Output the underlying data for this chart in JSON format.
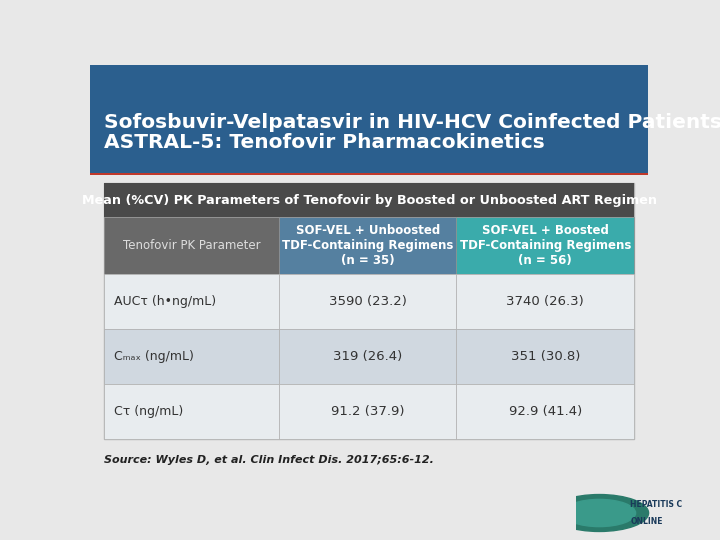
{
  "title_line1": "Sofosbuvir-Velpatasvir in HIV-HCV Coinfected Patients",
  "title_line2": "ASTRAL-5: Tenofovir Pharmacokinetics",
  "header_text": "Mean (%CV) PK Parameters of Tenofovir by Boosted or Unboosted ART Regimen",
  "col1_header": "Tenofovir PK Parameter",
  "col2_header": "SOF-VEL + Unboosted\nTDF-Containing Regimens\n(n = 35)",
  "col3_header": "SOF-VEL + Boosted\nTDF-Containing Regimens\n(n = 56)",
  "col2_bg": "#5580a0",
  "col3_bg": "#3aabab",
  "col1_bg": "#696969",
  "row_bg_odd": "#e8ecef",
  "row_bg_even": "#d0d8e0",
  "rows": [
    {
      "param": "AUCτ (h•ng/mL)",
      "col2": "3590 (23.2)",
      "col3": "3740 (26.3)"
    },
    {
      "param": "Cₘₐₓ (ng/mL)",
      "col2": "319 (26.4)",
      "col3": "351 (30.8)"
    },
    {
      "param": "Cτ (ng/mL)",
      "col2": "91.2 (37.9)",
      "col3": "92.9 (41.4)"
    }
  ],
  "source": "Source: Wyles D, et al. Clin Infect Dis. 2017;65:6-12.",
  "title_bg": "#2b5f8e",
  "accent_line_color": "#c0392b",
  "bg_color": "#e8e8e8",
  "subhdr_bg": "#4a4a4a",
  "outer_table_bg": "#c8c8c8"
}
